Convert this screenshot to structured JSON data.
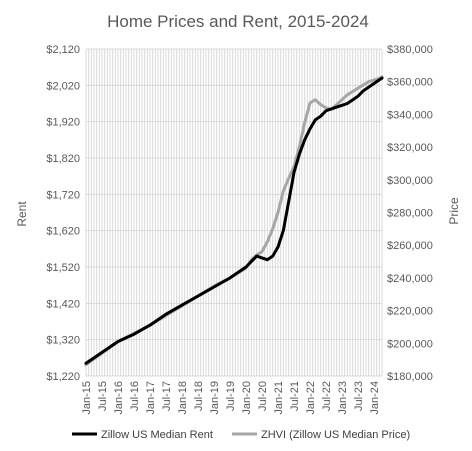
{
  "chart_data": {
    "type": "line",
    "title": "Home Prices and Rent, 2015-2024",
    "left_axis": {
      "label": "Rent",
      "min": 1220,
      "max": 2120,
      "step": 100,
      "ticks": [
        "$1,220",
        "$1,320",
        "$1,420",
        "$1,520",
        "$1,620",
        "$1,720",
        "$1,820",
        "$1,920",
        "$2,020",
        "$2,120"
      ]
    },
    "right_axis": {
      "label": "Price",
      "min": 180000,
      "max": 380000,
      "step": 20000,
      "ticks": [
        "$180,000",
        "$200,000",
        "$220,000",
        "$240,000",
        "$260,000",
        "$280,000",
        "$300,000",
        "$320,000",
        "$340,000",
        "$360,000",
        "$380,000"
      ]
    },
    "x_ticks": [
      "Jan-15",
      "Jul-15",
      "Jan-16",
      "Jul-16",
      "Jan-17",
      "Jul-17",
      "Jan-18",
      "Jul-18",
      "Jan-19",
      "Jul-19",
      "Jan-20",
      "Jul-20",
      "Jan-21",
      "Jul-21",
      "Jan-22",
      "Jul-22",
      "Jan-23",
      "Jul-23",
      "Jan-24"
    ],
    "grid": true,
    "legend_position": "bottom",
    "series": [
      {
        "name": "Zillow US Median Rent",
        "axis": "left",
        "color": "#000000",
        "x": [
          "Jan-15",
          "Jul-15",
          "Jan-16",
          "Jul-16",
          "Jan-17",
          "Jul-17",
          "Jan-18",
          "Jul-18",
          "Jan-19",
          "Jul-19",
          "Jan-20",
          "Mar-20",
          "May-20",
          "Jul-20",
          "Sep-20",
          "Nov-20",
          "Jan-21",
          "Mar-21",
          "May-21",
          "Jul-21",
          "Sep-21",
          "Nov-21",
          "Jan-22",
          "Mar-22",
          "May-22",
          "Jul-22",
          "Sep-22",
          "Nov-22",
          "Jan-23",
          "Mar-23",
          "May-23",
          "Jul-23",
          "Sep-23",
          "Nov-23",
          "Jan-24",
          "Mar-24",
          "Apr-24"
        ],
        "values": [
          1255,
          1285,
          1315,
          1335,
          1360,
          1390,
          1415,
          1440,
          1465,
          1490,
          1520,
          1535,
          1550,
          1545,
          1540,
          1550,
          1575,
          1620,
          1700,
          1780,
          1830,
          1870,
          1900,
          1925,
          1935,
          1950,
          1955,
          1960,
          1965,
          1970,
          1980,
          1990,
          2005,
          2015,
          2025,
          2035,
          2040
        ]
      },
      {
        "name": "ZHVI (Zillow US Median Price)",
        "axis": "right",
        "color": "#a6a6a6",
        "x": [
          "Jan-15",
          "Jul-15",
          "Jan-16",
          "Jul-16",
          "Jan-17",
          "Jul-17",
          "Jan-18",
          "Jul-18",
          "Jan-19",
          "Jul-19",
          "Jan-20",
          "Mar-20",
          "May-20",
          "Jul-20",
          "Sep-20",
          "Nov-20",
          "Jan-21",
          "Mar-21",
          "May-21",
          "Jul-21",
          "Sep-21",
          "Nov-21",
          "Jan-22",
          "Mar-22",
          "May-22",
          "Jul-22",
          "Sep-22",
          "Nov-22",
          "Jan-23",
          "Mar-23",
          "May-23",
          "Jul-23",
          "Sep-23",
          "Nov-23",
          "Jan-24",
          "Mar-24",
          "Apr-24"
        ],
        "values": [
          187000,
          194000,
          201000,
          206000,
          211000,
          217000,
          223000,
          229000,
          235000,
          240000,
          246000,
          251000,
          254000,
          256000,
          262000,
          270000,
          280000,
          293000,
          301000,
          308000,
          320000,
          335000,
          347000,
          349000,
          346000,
          344000,
          343000,
          346000,
          349000,
          352000,
          354000,
          356000,
          358000,
          360000,
          361000,
          362000,
          363000
        ]
      }
    ]
  }
}
